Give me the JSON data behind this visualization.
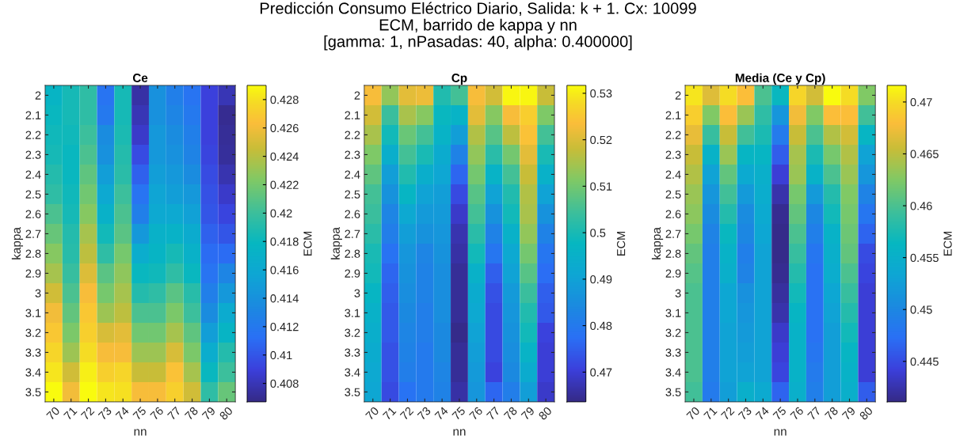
{
  "chart_data": [
    {
      "type": "heatmap",
      "title": "Ce",
      "xlabel": "nn",
      "ylabel": "kappa",
      "clabel": "ECM",
      "annotations": [
        "Predicción Consumo Eléctrico Diario, Salida: k + 1. Cx: 10099\nECM, barrido de kappa y nn\n[gamma: 1, nPasadas: 40, alpha: 0.400000]"
      ],
      "categories": [
        "70",
        "71",
        "72",
        "73",
        "74",
        "75",
        "76",
        "77",
        "78",
        "79",
        "80"
      ],
      "y_categories": [
        "2",
        "2.1",
        "2.2",
        "2.3",
        "2.4",
        "2.5",
        "2.6",
        "2.7",
        "2.8",
        "2.9",
        "3",
        "3.1",
        "3.2",
        "3.3",
        "3.4",
        "3.5"
      ],
      "clim": [
        0.4067,
        0.429
      ],
      "cticks": [
        0.408,
        0.41,
        0.412,
        0.414,
        0.416,
        0.418,
        0.42,
        0.422,
        0.424,
        0.426,
        0.428
      ],
      "cells": [
        [
          0.4175,
          0.4185,
          0.4195,
          0.4115,
          0.4185,
          0.4075,
          0.414,
          0.4125,
          0.4115,
          0.409,
          0.408
        ],
        [
          0.418,
          0.4185,
          0.4195,
          0.412,
          0.4185,
          0.408,
          0.414,
          0.413,
          0.412,
          0.409,
          0.407
        ],
        [
          0.4182,
          0.4182,
          0.42,
          0.4135,
          0.4187,
          0.4085,
          0.4145,
          0.4135,
          0.4125,
          0.409,
          0.4072
        ],
        [
          0.4185,
          0.418,
          0.4205,
          0.414,
          0.419,
          0.4095,
          0.4145,
          0.414,
          0.4128,
          0.4092,
          0.4073
        ],
        [
          0.419,
          0.418,
          0.4212,
          0.415,
          0.4193,
          0.4105,
          0.415,
          0.4145,
          0.4135,
          0.4095,
          0.4078
        ],
        [
          0.4195,
          0.4182,
          0.4218,
          0.416,
          0.42,
          0.4115,
          0.4155,
          0.415,
          0.4145,
          0.4098,
          0.4085
        ],
        [
          0.4205,
          0.4185,
          0.4225,
          0.417,
          0.4205,
          0.4125,
          0.416,
          0.416,
          0.4152,
          0.41,
          0.4092
        ],
        [
          0.4215,
          0.419,
          0.4235,
          0.4183,
          0.421,
          0.4145,
          0.417,
          0.4172,
          0.4163,
          0.4105,
          0.41
        ],
        [
          0.4225,
          0.4192,
          0.4242,
          0.4195,
          0.422,
          0.4165,
          0.4175,
          0.4185,
          0.417,
          0.411,
          0.411
        ],
        [
          0.4235,
          0.4198,
          0.4252,
          0.421,
          0.4228,
          0.418,
          0.4182,
          0.4195,
          0.418,
          0.4115,
          0.413
        ],
        [
          0.4248,
          0.4205,
          0.4262,
          0.422,
          0.4235,
          0.419,
          0.4195,
          0.421,
          0.4192,
          0.4125,
          0.4145
        ],
        [
          0.426,
          0.4213,
          0.4268,
          0.4232,
          0.4242,
          0.4205,
          0.4205,
          0.4222,
          0.42,
          0.4135,
          0.4162
        ],
        [
          0.4268,
          0.4222,
          0.4272,
          0.425,
          0.4255,
          0.4218,
          0.4218,
          0.4235,
          0.4212,
          0.415,
          0.4175
        ],
        [
          0.4275,
          0.4232,
          0.4278,
          0.4262,
          0.4262,
          0.4232,
          0.4232,
          0.425,
          0.4222,
          0.4165,
          0.419
        ],
        [
          0.4282,
          0.4248,
          0.4285,
          0.4272,
          0.4275,
          0.4245,
          0.4245,
          0.4265,
          0.4235,
          0.418,
          0.42
        ],
        [
          0.429,
          0.426,
          0.429,
          0.4282,
          0.428,
          0.4262,
          0.4262,
          0.4272,
          0.4248,
          0.4195,
          0.4215
        ]
      ]
    },
    {
      "type": "heatmap",
      "title": "Cp",
      "xlabel": "nn",
      "ylabel": "kappa",
      "clabel": "ECM",
      "categories": [
        "70",
        "71",
        "72",
        "73",
        "74",
        "75",
        "76",
        "77",
        "78",
        "79",
        "80"
      ],
      "y_categories": [
        "2",
        "2.1",
        "2.2",
        "2.3",
        "2.4",
        "2.5",
        "2.6",
        "2.7",
        "2.8",
        "2.9",
        "3",
        "3.1",
        "3.2",
        "3.3",
        "3.4",
        "3.5"
      ],
      "clim": [
        0.4636,
        0.5317
      ],
      "cticks": [
        0.47,
        0.48,
        0.49,
        0.5,
        0.51,
        0.52,
        0.53
      ],
      "cells": [
        [
          0.523,
          0.513,
          0.521,
          0.522,
          0.501,
          0.505,
          0.523,
          0.519,
          0.531,
          0.531,
          0.518
        ],
        [
          0.519,
          0.504,
          0.515,
          0.512,
          0.498,
          0.496,
          0.521,
          0.512,
          0.523,
          0.526,
          0.511
        ],
        [
          0.515,
          0.499,
          0.509,
          0.505,
          0.496,
          0.489,
          0.516,
          0.507,
          0.517,
          0.524,
          0.505
        ],
        [
          0.511,
          0.494,
          0.505,
          0.5,
          0.493,
          0.482,
          0.513,
          0.502,
          0.51,
          0.521,
          0.5
        ],
        [
          0.508,
          0.489,
          0.501,
          0.494,
          0.491,
          0.476,
          0.51,
          0.496,
          0.505,
          0.518,
          0.495
        ],
        [
          0.505,
          0.486,
          0.497,
          0.49,
          0.489,
          0.472,
          0.507,
          0.49,
          0.501,
          0.516,
          0.49
        ],
        [
          0.504,
          0.483,
          0.492,
          0.488,
          0.488,
          0.469,
          0.505,
          0.486,
          0.499,
          0.515,
          0.486
        ],
        [
          0.502,
          0.481,
          0.489,
          0.486,
          0.487,
          0.467,
          0.502,
          0.482,
          0.495,
          0.513,
          0.482
        ],
        [
          0.5,
          0.478,
          0.487,
          0.483,
          0.486,
          0.466,
          0.499,
          0.479,
          0.492,
          0.51,
          0.479
        ],
        [
          0.499,
          0.476,
          0.486,
          0.482,
          0.485,
          0.465,
          0.495,
          0.475,
          0.49,
          0.507,
          0.477
        ],
        [
          0.497,
          0.475,
          0.485,
          0.482,
          0.485,
          0.465,
          0.493,
          0.473,
          0.488,
          0.504,
          0.475
        ],
        [
          0.495,
          0.474,
          0.484,
          0.481,
          0.485,
          0.465,
          0.492,
          0.472,
          0.487,
          0.501,
          0.474
        ],
        [
          0.494,
          0.474,
          0.483,
          0.481,
          0.484,
          0.464,
          0.49,
          0.472,
          0.486,
          0.499,
          0.471
        ],
        [
          0.493,
          0.473,
          0.482,
          0.48,
          0.484,
          0.465,
          0.489,
          0.472,
          0.485,
          0.496,
          0.47
        ],
        [
          0.492,
          0.473,
          0.481,
          0.48,
          0.483,
          0.465,
          0.488,
          0.471,
          0.484,
          0.493,
          0.47
        ],
        [
          0.491,
          0.472,
          0.478,
          0.48,
          0.482,
          0.466,
          0.487,
          0.476,
          0.481,
          0.489,
          0.469
        ]
      ]
    },
    {
      "type": "heatmap",
      "title": "Media (Ce y Cp)",
      "xlabel": "nn",
      "ylabel": "kappa",
      "clabel": "ECM",
      "categories": [
        "70",
        "71",
        "72",
        "73",
        "74",
        "75",
        "76",
        "77",
        "78",
        "79",
        "80"
      ],
      "y_categories": [
        "2",
        "2.1",
        "2.2",
        "2.3",
        "2.4",
        "2.5",
        "2.6",
        "2.7",
        "2.8",
        "2.9",
        "3",
        "3.1",
        "3.2",
        "3.3",
        "3.4",
        "3.5"
      ],
      "clim": [
        0.4411,
        0.4716
      ],
      "cticks": [
        0.445,
        0.45,
        0.455,
        0.46,
        0.465,
        0.47
      ],
      "cells": [
        [
          0.4705,
          0.4665,
          0.47,
          0.468,
          0.46,
          0.4565,
          0.4695,
          0.466,
          0.4715,
          0.47,
          0.4625
        ],
        [
          0.469,
          0.4625,
          0.468,
          0.4635,
          0.4585,
          0.4515,
          0.4675,
          0.4625,
          0.468,
          0.468,
          0.4595
        ],
        [
          0.467,
          0.459,
          0.4655,
          0.4595,
          0.4575,
          0.4485,
          0.4655,
          0.46,
          0.4645,
          0.466,
          0.456
        ],
        [
          0.4655,
          0.4555,
          0.4635,
          0.456,
          0.456,
          0.446,
          0.464,
          0.4575,
          0.462,
          0.4645,
          0.453
        ],
        [
          0.4645,
          0.453,
          0.461,
          0.454,
          0.455,
          0.444,
          0.4635,
          0.4555,
          0.46,
          0.4635,
          0.4515
        ],
        [
          0.4635,
          0.4515,
          0.4595,
          0.452,
          0.4545,
          0.4425,
          0.462,
          0.452,
          0.458,
          0.4625,
          0.4495
        ],
        [
          0.463,
          0.4505,
          0.458,
          0.4505,
          0.454,
          0.4415,
          0.461,
          0.45,
          0.457,
          0.462,
          0.448
        ],
        [
          0.462,
          0.4495,
          0.4565,
          0.45,
          0.4535,
          0.4413,
          0.46,
          0.449,
          0.4555,
          0.4615,
          0.4465
        ],
        [
          0.461,
          0.449,
          0.4555,
          0.449,
          0.453,
          0.4413,
          0.459,
          0.448,
          0.455,
          0.461,
          0.445
        ],
        [
          0.4605,
          0.449,
          0.455,
          0.4495,
          0.453,
          0.4415,
          0.458,
          0.4475,
          0.4545,
          0.46,
          0.4445
        ],
        [
          0.46,
          0.449,
          0.4535,
          0.451,
          0.453,
          0.442,
          0.457,
          0.4475,
          0.4535,
          0.459,
          0.444
        ],
        [
          0.46,
          0.449,
          0.4535,
          0.4515,
          0.453,
          0.4425,
          0.456,
          0.4475,
          0.453,
          0.458,
          0.444
        ],
        [
          0.46,
          0.449,
          0.453,
          0.452,
          0.453,
          0.4435,
          0.4555,
          0.4475,
          0.4525,
          0.457,
          0.444
        ],
        [
          0.46,
          0.449,
          0.453,
          0.4525,
          0.453,
          0.444,
          0.4555,
          0.448,
          0.4525,
          0.456,
          0.444
        ],
        [
          0.46,
          0.449,
          0.453,
          0.453,
          0.453,
          0.4445,
          0.4555,
          0.4485,
          0.4525,
          0.4555,
          0.444
        ],
        [
          0.4595,
          0.4485,
          0.4525,
          0.455,
          0.454,
          0.4465,
          0.455,
          0.449,
          0.4525,
          0.455,
          0.446
        ]
      ]
    }
  ]
}
